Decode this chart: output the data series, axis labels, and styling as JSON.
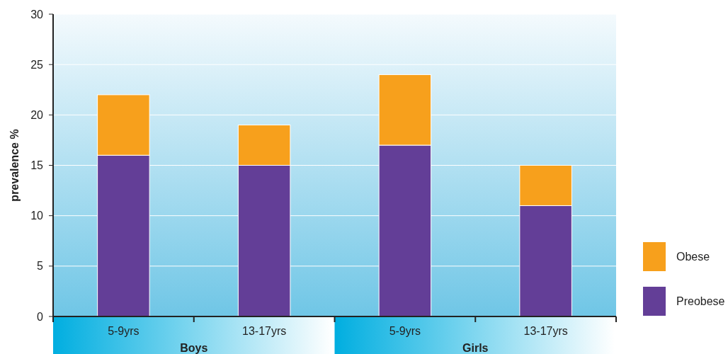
{
  "chart_data": {
    "type": "bar",
    "stacked": true,
    "ylabel": "prevalence %",
    "categories": [
      "5-9yrs",
      "13-17yrs",
      "5-9yrs",
      "13-17yrs"
    ],
    "series": [
      {
        "name": "Preobese",
        "color": "#633e97",
        "values": [
          16,
          15,
          17,
          11
        ]
      },
      {
        "name": "Obese",
        "color": "#f7a01c",
        "values": [
          6,
          4,
          7,
          4
        ]
      }
    ],
    "ylim": [
      0,
      30
    ],
    "yticks": [
      0,
      5,
      10,
      15,
      20,
      25,
      30
    ],
    "grid": "y",
    "legend": "right",
    "annotations": [
      "Boys",
      "Girls"
    ]
  }
}
